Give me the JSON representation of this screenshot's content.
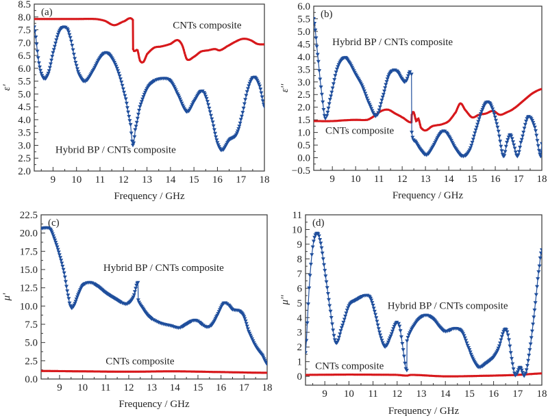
{
  "chart_data": [
    {
      "type": "line",
      "panel_label": "(a)",
      "xlabel": "Frequency / GHz",
      "ylabel": "ε'",
      "xlim": [
        8.2,
        18
      ],
      "ylim": [
        2.0,
        8.5
      ],
      "xticks": [
        9,
        10,
        11,
        12,
        13,
        14,
        15,
        16,
        17,
        18
      ],
      "yticks": [
        2.0,
        2.5,
        3.0,
        3.5,
        4.0,
        4.5,
        5.0,
        5.5,
        6.0,
        6.5,
        7.0,
        7.5,
        8.0,
        8.5
      ],
      "ytick_decimals": 1,
      "grid": false,
      "annotations": [
        {
          "text": "CNTs composite",
          "x": 14.1,
          "y": 7.55
        },
        {
          "text": "Hybrid BP / CNTs composite",
          "x": 9.1,
          "y": 2.7
        }
      ],
      "series": [
        {
          "name": "CNTs composite",
          "color": "#d7191c",
          "marker": "circle",
          "x": [
            8.2,
            9.0,
            10.0,
            10.8,
            11.2,
            11.6,
            12.0,
            12.4,
            12.41,
            12.6,
            12.7,
            12.85,
            13.0,
            13.3,
            13.6,
            14.0,
            14.3,
            14.5,
            14.7,
            15.0,
            15.3,
            15.6,
            15.9,
            16.1,
            16.4,
            16.8,
            17.1,
            17.4,
            17.7,
            18.0
          ],
          "y": [
            7.92,
            7.92,
            7.92,
            7.92,
            7.85,
            7.68,
            7.82,
            7.88,
            6.75,
            6.7,
            6.3,
            6.25,
            6.55,
            6.8,
            6.85,
            6.95,
            7.1,
            6.9,
            6.35,
            6.45,
            6.65,
            6.7,
            6.75,
            6.7,
            6.85,
            7.05,
            7.15,
            7.1,
            6.95,
            6.93
          ]
        },
        {
          "name": "Hybrid BP / CNTs composite",
          "color": "#1f4e9c",
          "marker": "triangle-down",
          "x": [
            8.2,
            8.4,
            8.6,
            8.8,
            9.0,
            9.25,
            9.5,
            9.7,
            10.0,
            10.2,
            10.4,
            10.7,
            11.0,
            11.25,
            11.5,
            11.8,
            12.1,
            12.3,
            12.4,
            12.5,
            12.7,
            13.0,
            13.3,
            13.7,
            14.0,
            14.3,
            14.7,
            15.0,
            15.3,
            15.5,
            15.8,
            16.0,
            16.2,
            16.5,
            16.8,
            17.0,
            17.3,
            17.55,
            17.8,
            18.0
          ],
          "y": [
            7.6,
            6.2,
            5.6,
            5.8,
            6.6,
            7.4,
            7.6,
            7.3,
            6.1,
            5.6,
            5.5,
            5.9,
            6.4,
            6.6,
            6.4,
            5.8,
            4.8,
            3.8,
            3.0,
            3.6,
            4.5,
            5.2,
            5.5,
            5.6,
            5.5,
            5.0,
            4.3,
            4.7,
            5.1,
            4.9,
            3.9,
            3.1,
            2.8,
            3.2,
            3.4,
            4.0,
            5.2,
            5.65,
            5.3,
            4.5
          ]
        }
      ]
    },
    {
      "type": "line",
      "panel_label": "(b)",
      "xlabel": "Frequency / GHz",
      "ylabel": "ε''",
      "xlim": [
        8.2,
        18
      ],
      "ylim": [
        -0.5,
        6.0
      ],
      "xticks": [
        9,
        10,
        11,
        12,
        13,
        14,
        15,
        16,
        17,
        18
      ],
      "yticks": [
        -0.5,
        0.0,
        0.5,
        1.0,
        1.5,
        2.0,
        2.5,
        3.0,
        3.5,
        4.0,
        4.5,
        5.0,
        5.5,
        6.0
      ],
      "ytick_decimals": 1,
      "grid": false,
      "annotations": [
        {
          "text": "Hybrid BP / CNTs composite",
          "x": 9.0,
          "y": 4.45
        },
        {
          "text": "CNTs composite",
          "x": 8.7,
          "y": 0.95
        }
      ],
      "series": [
        {
          "name": "CNTs composite",
          "color": "#d7191c",
          "marker": "circle",
          "x": [
            8.2,
            9.0,
            9.5,
            10.0,
            10.5,
            10.8,
            11.1,
            11.4,
            11.7,
            12.0,
            12.4,
            12.41,
            12.5,
            12.6,
            12.7,
            12.8,
            13.0,
            13.3,
            13.7,
            14.0,
            14.3,
            14.5,
            14.7,
            15.0,
            15.3,
            15.6,
            15.9,
            16.2,
            16.5,
            16.8,
            17.2,
            17.6,
            18.0
          ],
          "y": [
            1.45,
            1.45,
            1.48,
            1.5,
            1.5,
            1.65,
            1.85,
            1.9,
            1.75,
            1.6,
            1.4,
            1.7,
            1.8,
            1.45,
            1.55,
            1.2,
            1.08,
            1.25,
            1.32,
            1.45,
            1.8,
            2.15,
            1.9,
            1.6,
            1.7,
            1.75,
            1.85,
            1.7,
            1.8,
            1.95,
            2.25,
            2.55,
            2.72
          ]
        },
        {
          "name": "Hybrid BP / CNTs composite",
          "color": "#1f4e9c",
          "marker": "triangle-down",
          "x": [
            8.2,
            8.4,
            8.55,
            8.7,
            8.9,
            9.2,
            9.5,
            9.7,
            10.0,
            10.3,
            10.6,
            10.9,
            11.2,
            11.4,
            11.6,
            11.8,
            12.0,
            12.15,
            12.4,
            12.41,
            12.6,
            12.8,
            13.05,
            13.3,
            13.6,
            13.8,
            14.0,
            14.3,
            14.6,
            14.9,
            15.2,
            15.45,
            15.65,
            15.85,
            16.1,
            16.35,
            16.5,
            16.65,
            16.8,
            16.95,
            17.1,
            17.4,
            17.7,
            17.95,
            18.0
          ],
          "y": [
            5.5,
            3.8,
            2.5,
            1.55,
            2.3,
            3.5,
            3.95,
            3.8,
            3.3,
            2.8,
            2.1,
            1.65,
            2.5,
            3.2,
            3.45,
            3.4,
            3.1,
            3.0,
            3.3,
            1.0,
            0.6,
            0.3,
            0.1,
            0.4,
            0.9,
            1.05,
            0.85,
            0.35,
            0.05,
            0.3,
            1.2,
            1.9,
            2.2,
            2.0,
            1.2,
            0.05,
            0.6,
            0.9,
            0.5,
            0.05,
            0.6,
            1.6,
            1.2,
            0.05,
            0.55
          ]
        }
      ]
    },
    {
      "type": "line",
      "panel_label": "(c)",
      "xlabel": "Frequency / GHz",
      "ylabel": "μ'",
      "xlim": [
        8.2,
        18
      ],
      "ylim": [
        0.0,
        22.5
      ],
      "xticks": [
        9,
        10,
        11,
        12,
        13,
        14,
        15,
        16,
        17,
        18
      ],
      "yticks": [
        0.0,
        2.5,
        5.0,
        7.5,
        10.0,
        12.5,
        15.0,
        17.5,
        20.0,
        22.5
      ],
      "ytick_decimals": 1,
      "grid": false,
      "annotations": [
        {
          "text": "Hybrid BP / CNTs composite",
          "x": 10.9,
          "y": 14.8
        },
        {
          "text": "CNTs composite",
          "x": 11.0,
          "y": 2.0
        }
      ],
      "series": [
        {
          "name": "CNTs composite",
          "color": "#d7191c",
          "marker": "circle",
          "x": [
            8.2,
            10.0,
            12.0,
            14.0,
            16.0,
            18.0
          ],
          "y": [
            1.1,
            1.05,
            1.0,
            1.05,
            0.95,
            0.85
          ]
        },
        {
          "name": "Hybrid BP / CNTs composite",
          "color": "#1f4e9c",
          "marker": "triangle-down",
          "x": [
            8.2,
            8.4,
            8.6,
            8.8,
            9.0,
            9.2,
            9.4,
            9.5,
            9.6,
            9.8,
            10.0,
            10.3,
            10.6,
            11.0,
            11.4,
            11.8,
            12.0,
            12.2,
            12.4,
            12.41,
            12.6,
            12.8,
            13.0,
            13.4,
            13.8,
            14.2,
            14.5,
            14.8,
            15.0,
            15.2,
            15.4,
            15.6,
            15.8,
            16.1,
            16.3,
            16.5,
            16.8,
            17.0,
            17.2,
            17.5,
            17.8,
            18.0
          ],
          "y": [
            20.6,
            20.7,
            20.5,
            19.0,
            17.0,
            14.5,
            11.0,
            9.8,
            9.9,
            11.5,
            12.8,
            13.2,
            12.8,
            11.8,
            11.0,
            10.3,
            10.4,
            11.2,
            13.2,
            10.8,
            9.7,
            8.8,
            8.2,
            7.6,
            7.3,
            7.0,
            7.5,
            8.0,
            7.9,
            7.4,
            7.1,
            7.4,
            8.5,
            10.3,
            10.2,
            9.5,
            9.3,
            8.5,
            6.5,
            4.5,
            3.2,
            2.0
          ]
        }
      ]
    },
    {
      "type": "line",
      "panel_label": "(d)",
      "xlabel": "Frequency / GHz",
      "ylabel": "μ''",
      "xlim": [
        8.2,
        18
      ],
      "ylim": [
        -0.6,
        11
      ],
      "xticks": [
        9,
        10,
        11,
        12,
        13,
        14,
        15,
        16,
        17,
        18
      ],
      "yticks": [
        0,
        1,
        2,
        3,
        4,
        5,
        6,
        7,
        8,
        9,
        10,
        11
      ],
      "ytick_decimals": 0,
      "grid": false,
      "annotations": [
        {
          "text": "Hybrid BP / CNTs composite",
          "x": 11.6,
          "y": 4.6
        },
        {
          "text": "CNTs composite",
          "x": 8.6,
          "y": 0.5
        }
      ],
      "series": [
        {
          "name": "CNTs composite",
          "color": "#d7191c",
          "marker": "circle",
          "x": [
            8.2,
            10.0,
            12.0,
            12.4,
            12.6,
            14.0,
            16.0,
            17.0,
            18.0
          ],
          "y": [
            0.1,
            0.12,
            0.1,
            0.05,
            0.1,
            0.0,
            0.05,
            0.1,
            0.2
          ]
        },
        {
          "name": "Hybrid BP / CNTs composite",
          "color": "#1f4e9c",
          "marker": "triangle-down",
          "x": [
            8.2,
            8.35,
            8.5,
            8.65,
            8.8,
            9.0,
            9.2,
            9.45,
            9.7,
            10.0,
            10.3,
            10.7,
            10.9,
            11.1,
            11.3,
            11.5,
            11.7,
            11.95,
            12.1,
            12.25,
            12.4,
            12.41,
            12.6,
            12.9,
            13.2,
            13.5,
            13.8,
            14.0,
            14.4,
            14.7,
            15.0,
            15.2,
            15.4,
            15.7,
            16.0,
            16.2,
            16.45,
            16.6,
            16.75,
            16.9,
            17.1,
            17.3,
            17.5,
            17.7,
            17.9,
            18.0
          ],
          "y": [
            1.6,
            6.0,
            8.8,
            9.7,
            9.3,
            7.2,
            4.8,
            2.3,
            3.3,
            4.8,
            5.2,
            5.5,
            5.3,
            4.2,
            2.8,
            2.0,
            2.6,
            3.6,
            3.4,
            1.8,
            0.4,
            2.4,
            3.2,
            3.9,
            4.15,
            3.9,
            3.3,
            3.05,
            3.25,
            3.0,
            1.8,
            1.0,
            0.6,
            0.9,
            1.3,
            1.9,
            3.15,
            2.8,
            1.2,
            0.05,
            0.6,
            0.05,
            1.8,
            4.5,
            7.5,
            8.6
          ]
        }
      ]
    }
  ]
}
